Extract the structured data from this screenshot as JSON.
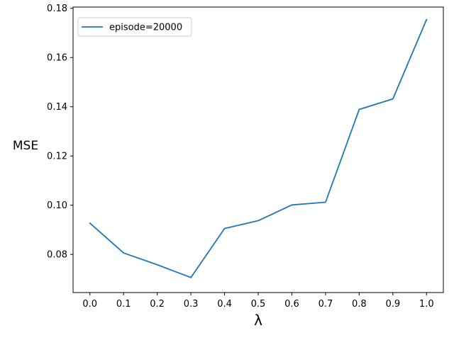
{
  "chart_data": {
    "type": "line",
    "title": "",
    "xlabel": "λ",
    "ylabel": "MSE",
    "x": [
      0.0,
      0.1,
      0.2,
      0.3,
      0.4,
      0.5,
      0.6,
      0.7,
      0.8,
      0.9,
      1.0
    ],
    "x_tick_labels": [
      "0.0",
      "0.1",
      "0.2",
      "0.3",
      "0.4",
      "0.5",
      "0.6",
      "0.7",
      "0.8",
      "0.9",
      "1.0"
    ],
    "y_ticks": [
      0.08,
      0.1,
      0.12,
      0.14,
      0.16,
      0.18
    ],
    "y_tick_labels": [
      "0.08",
      "0.10",
      "0.12",
      "0.14",
      "0.16",
      "0.18"
    ],
    "xlim": [
      -0.05,
      1.05
    ],
    "ylim": [
      0.0645,
      0.1805
    ],
    "grid": false,
    "legend_position": "top-left",
    "series": [
      {
        "name": "episode=20000",
        "color": "#1f77b4",
        "values": [
          0.0927,
          0.0806,
          0.0758,
          0.0706,
          0.0905,
          0.0937,
          0.1001,
          0.1012,
          0.1389,
          0.1432,
          0.1754
        ]
      }
    ]
  }
}
